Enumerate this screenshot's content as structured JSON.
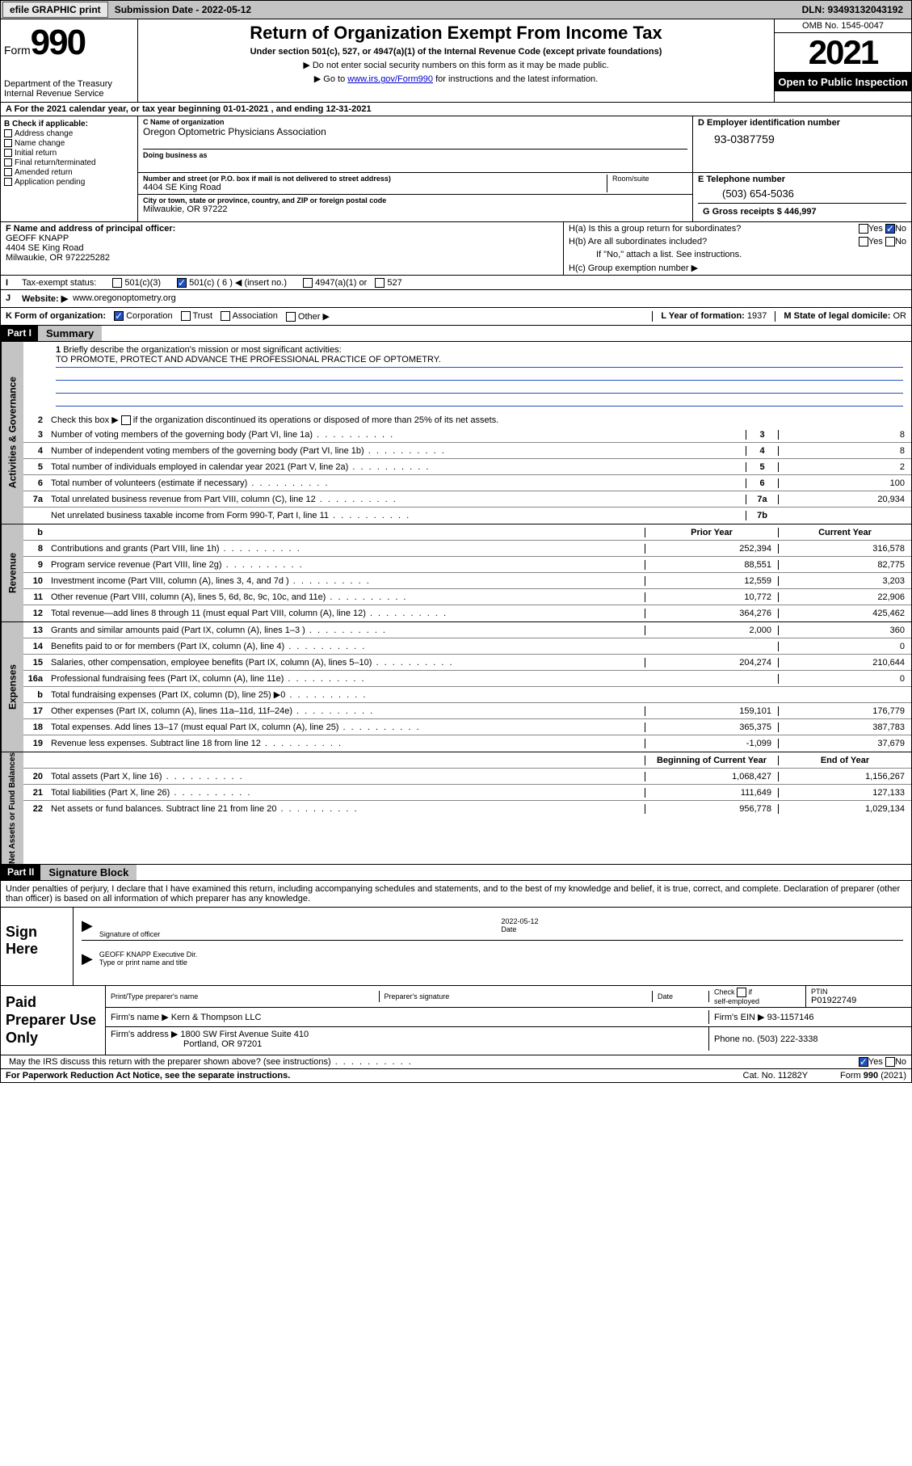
{
  "topbar": {
    "efile": "efile GRAPHIC print",
    "submission_label": "Submission Date - 2022-05-12",
    "dln": "DLN: 93493132043192"
  },
  "header": {
    "form_word": "Form",
    "form_num": "990",
    "dept": "Department of the Treasury",
    "irs": "Internal Revenue Service",
    "title": "Return of Organization Exempt From Income Tax",
    "sub": "Under section 501(c), 527, or 4947(a)(1) of the Internal Revenue Code (except private foundations)",
    "note1": "Do not enter social security numbers on this form as it may be made public.",
    "note2_pre": "Go to ",
    "note2_link": "www.irs.gov/Form990",
    "note2_post": " for instructions and the latest information.",
    "omb": "OMB No. 1545-0047",
    "year": "2021",
    "open": "Open to Public Inspection"
  },
  "rowA": "A For the 2021 calendar year, or tax year beginning 01-01-2021   , and ending 12-31-2021",
  "colB": {
    "title": "B Check if applicable:",
    "items": [
      "Address change",
      "Name change",
      "Initial return",
      "Final return/terminated",
      "Amended return",
      "Application pending"
    ]
  },
  "colC": {
    "name_label": "C Name of organization",
    "org_name": "Oregon Optometric Physicians Association",
    "dba_label": "Doing business as",
    "addr_label": "Number and street (or P.O. box if mail is not delivered to street address)",
    "room_label": "Room/suite",
    "street": "4404 SE King Road",
    "city_label": "City or town, state or province, country, and ZIP or foreign postal code",
    "city": "Milwaukie, OR  97222"
  },
  "colD": {
    "label": "D Employer identification number",
    "ein": "93-0387759"
  },
  "colE": {
    "label": "E Telephone number",
    "tel": "(503) 654-5036"
  },
  "colG": {
    "label": "G Gross receipts $",
    "val": "446,997"
  },
  "colF": {
    "label": "F Name and address of principal officer:",
    "name": "GEOFF KNAPP",
    "street": "4404 SE King Road",
    "city": "Milwaukie, OR  972225282"
  },
  "colH": {
    "a": "H(a)  Is this a group return for subordinates?",
    "b": "H(b)  Are all subordinates included?",
    "b_note": "If \"No,\" attach a list. See instructions.",
    "c": "H(c)  Group exemption number ▶"
  },
  "rowI": {
    "label": "Tax-exempt status:",
    "opts": [
      "501(c)(3)",
      "501(c) ( 6 ) ◀ (insert no.)",
      "4947(a)(1) or",
      "527"
    ]
  },
  "rowJ": {
    "label": "Website: ▶",
    "val": "www.oregonoptometry.org"
  },
  "rowK": {
    "label": "K Form of organization:",
    "opts": [
      "Corporation",
      "Trust",
      "Association",
      "Other ▶"
    ]
  },
  "rowL": {
    "label": "L Year of formation:",
    "val": "1937"
  },
  "rowM": {
    "label": "M State of legal domicile:",
    "val": "OR"
  },
  "partI": {
    "header": "Part I",
    "title": "Summary",
    "mission_label": "Briefly describe the organization's mission or most significant activities:",
    "mission": "TO PROMOTE, PROTECT AND ADVANCE THE PROFESSIONAL PRACTICE OF OPTOMETRY.",
    "line2": "Check this box ▶     if the organization discontinued its operations or disposed of more than 25% of its net assets."
  },
  "governance": {
    "tab": "Activities & Governance",
    "rows": [
      {
        "n": "3",
        "t": "Number of voting members of the governing body (Part VI, line 1a)",
        "cn": "3",
        "v": "8"
      },
      {
        "n": "4",
        "t": "Number of independent voting members of the governing body (Part VI, line 1b)",
        "cn": "4",
        "v": "8"
      },
      {
        "n": "5",
        "t": "Total number of individuals employed in calendar year 2021 (Part V, line 2a)",
        "cn": "5",
        "v": "2"
      },
      {
        "n": "6",
        "t": "Total number of volunteers (estimate if necessary)",
        "cn": "6",
        "v": "100"
      },
      {
        "n": "7a",
        "t": "Total unrelated business revenue from Part VIII, column (C), line 12",
        "cn": "7a",
        "v": "20,934"
      },
      {
        "n": "",
        "t": "Net unrelated business taxable income from Form 990-T, Part I, line 11",
        "cn": "7b",
        "v": ""
      }
    ]
  },
  "revenue": {
    "tab": "Revenue",
    "head_b": "b",
    "head_prior": "Prior Year",
    "head_curr": "Current Year",
    "rows": [
      {
        "n": "8",
        "t": "Contributions and grants (Part VIII, line 1h)",
        "p": "252,394",
        "c": "316,578"
      },
      {
        "n": "9",
        "t": "Program service revenue (Part VIII, line 2g)",
        "p": "88,551",
        "c": "82,775"
      },
      {
        "n": "10",
        "t": "Investment income (Part VIII, column (A), lines 3, 4, and 7d )",
        "p": "12,559",
        "c": "3,203"
      },
      {
        "n": "11",
        "t": "Other revenue (Part VIII, column (A), lines 5, 6d, 8c, 9c, 10c, and 11e)",
        "p": "10,772",
        "c": "22,906"
      },
      {
        "n": "12",
        "t": "Total revenue—add lines 8 through 11 (must equal Part VIII, column (A), line 12)",
        "p": "364,276",
        "c": "425,462"
      }
    ]
  },
  "expenses": {
    "tab": "Expenses",
    "rows": [
      {
        "n": "13",
        "t": "Grants and similar amounts paid (Part IX, column (A), lines 1–3 )",
        "p": "2,000",
        "c": "360"
      },
      {
        "n": "14",
        "t": "Benefits paid to or for members (Part IX, column (A), line 4)",
        "p": "",
        "c": "0"
      },
      {
        "n": "15",
        "t": "Salaries, other compensation, employee benefits (Part IX, column (A), lines 5–10)",
        "p": "204,274",
        "c": "210,644"
      },
      {
        "n": "16a",
        "t": "Professional fundraising fees (Part IX, column (A), line 11e)",
        "p": "",
        "c": "0"
      },
      {
        "n": "b",
        "t": "Total fundraising expenses (Part IX, column (D), line 25) ▶0",
        "p": "grey",
        "c": "grey"
      },
      {
        "n": "17",
        "t": "Other expenses (Part IX, column (A), lines 11a–11d, 11f–24e)",
        "p": "159,101",
        "c": "176,779"
      },
      {
        "n": "18",
        "t": "Total expenses. Add lines 13–17 (must equal Part IX, column (A), line 25)",
        "p": "365,375",
        "c": "387,783"
      },
      {
        "n": "19",
        "t": "Revenue less expenses. Subtract line 18 from line 12",
        "p": "-1,099",
        "c": "37,679"
      }
    ]
  },
  "netassets": {
    "tab": "Net Assets or Fund Balances",
    "head_beg": "Beginning of Current Year",
    "head_end": "End of Year",
    "rows": [
      {
        "n": "20",
        "t": "Total assets (Part X, line 16)",
        "p": "1,068,427",
        "c": "1,156,267"
      },
      {
        "n": "21",
        "t": "Total liabilities (Part X, line 26)",
        "p": "111,649",
        "c": "127,133"
      },
      {
        "n": "22",
        "t": "Net assets or fund balances. Subtract line 21 from line 20",
        "p": "956,778",
        "c": "1,029,134"
      }
    ]
  },
  "partII": {
    "header": "Part II",
    "title": "Signature Block",
    "declaration": "Under penalties of perjury, I declare that I have examined this return, including accompanying schedules and statements, and to the best of my knowledge and belief, it is true, correct, and complete. Declaration of preparer (other than officer) is based on all information of which preparer has any knowledge."
  },
  "sign": {
    "left": "Sign Here",
    "sig_label": "Signature of officer",
    "date_label": "Date",
    "date_val": "2022-05-12",
    "name": "GEOFF KNAPP  Executive Dir.",
    "name_label": "Type or print name and title"
  },
  "prep": {
    "left": "Paid Preparer Use Only",
    "h1": "Print/Type preparer's name",
    "h2": "Preparer's signature",
    "h3": "Date",
    "h4_check": "Check      if self-employed",
    "h5_label": "PTIN",
    "h5_val": "P01922749",
    "firm_label": "Firm's name    ▶",
    "firm_name": "Kern & Thompson LLC",
    "firm_ein_label": "Firm's EIN ▶",
    "firm_ein": "93-1157146",
    "firm_addr_label": "Firm's address ▶",
    "firm_addr1": "1800 SW First Avenue Suite 410",
    "firm_addr2": "Portland, OR  97201",
    "phone_label": "Phone no.",
    "phone": "(503) 222-3338"
  },
  "discuss": "May the IRS discuss this return with the preparer shown above? (see instructions)",
  "footer": {
    "left": "For Paperwork Reduction Act Notice, see the separate instructions.",
    "mid": "Cat. No. 11282Y",
    "right": "Form 990 (2021)"
  }
}
